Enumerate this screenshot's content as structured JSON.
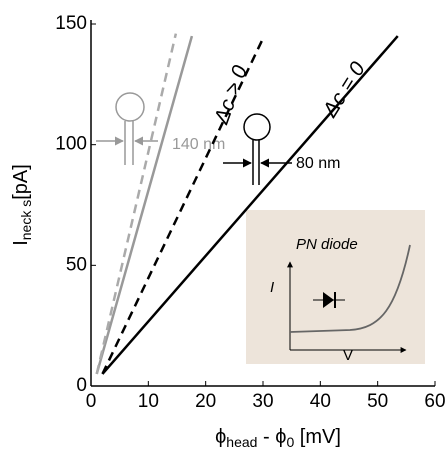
{
  "chart_data": {
    "type": "line",
    "x_label_parts": [
      "ϕ",
      "head",
      " - ϕ",
      "0",
      " [mV]"
    ],
    "y_label_parts": [
      "I",
      "neck s",
      "[pA]"
    ],
    "xlim": [
      0,
      60
    ],
    "xticks": [
      0,
      10,
      20,
      30,
      40,
      50,
      60
    ],
    "ylim": [
      0,
      150
    ],
    "yticks": [
      0,
      50,
      100,
      150
    ],
    "grid": false,
    "series": [
      {
        "name": "Δc = 0",
        "color": "#000000",
        "style": "solid",
        "x": [
          2,
          53.5
        ],
        "values": [
          5,
          145
        ]
      },
      {
        "name": "Δc > 0",
        "color": "#000000",
        "style": "dashed",
        "x": [
          2,
          30.2
        ],
        "values": [
          5,
          145
        ]
      },
      {
        "color": "#999999",
        "style": "solid",
        "x": [
          1,
          17.6
        ],
        "values": [
          5,
          145
        ]
      },
      {
        "color": "#aaaaaa",
        "style": "dashed",
        "x": [
          1,
          14.8
        ],
        "values": [
          5,
          146
        ]
      }
    ],
    "annotations": [
      "140 nm",
      "80 nm",
      "PN diode",
      "I",
      "V"
    ]
  }
}
